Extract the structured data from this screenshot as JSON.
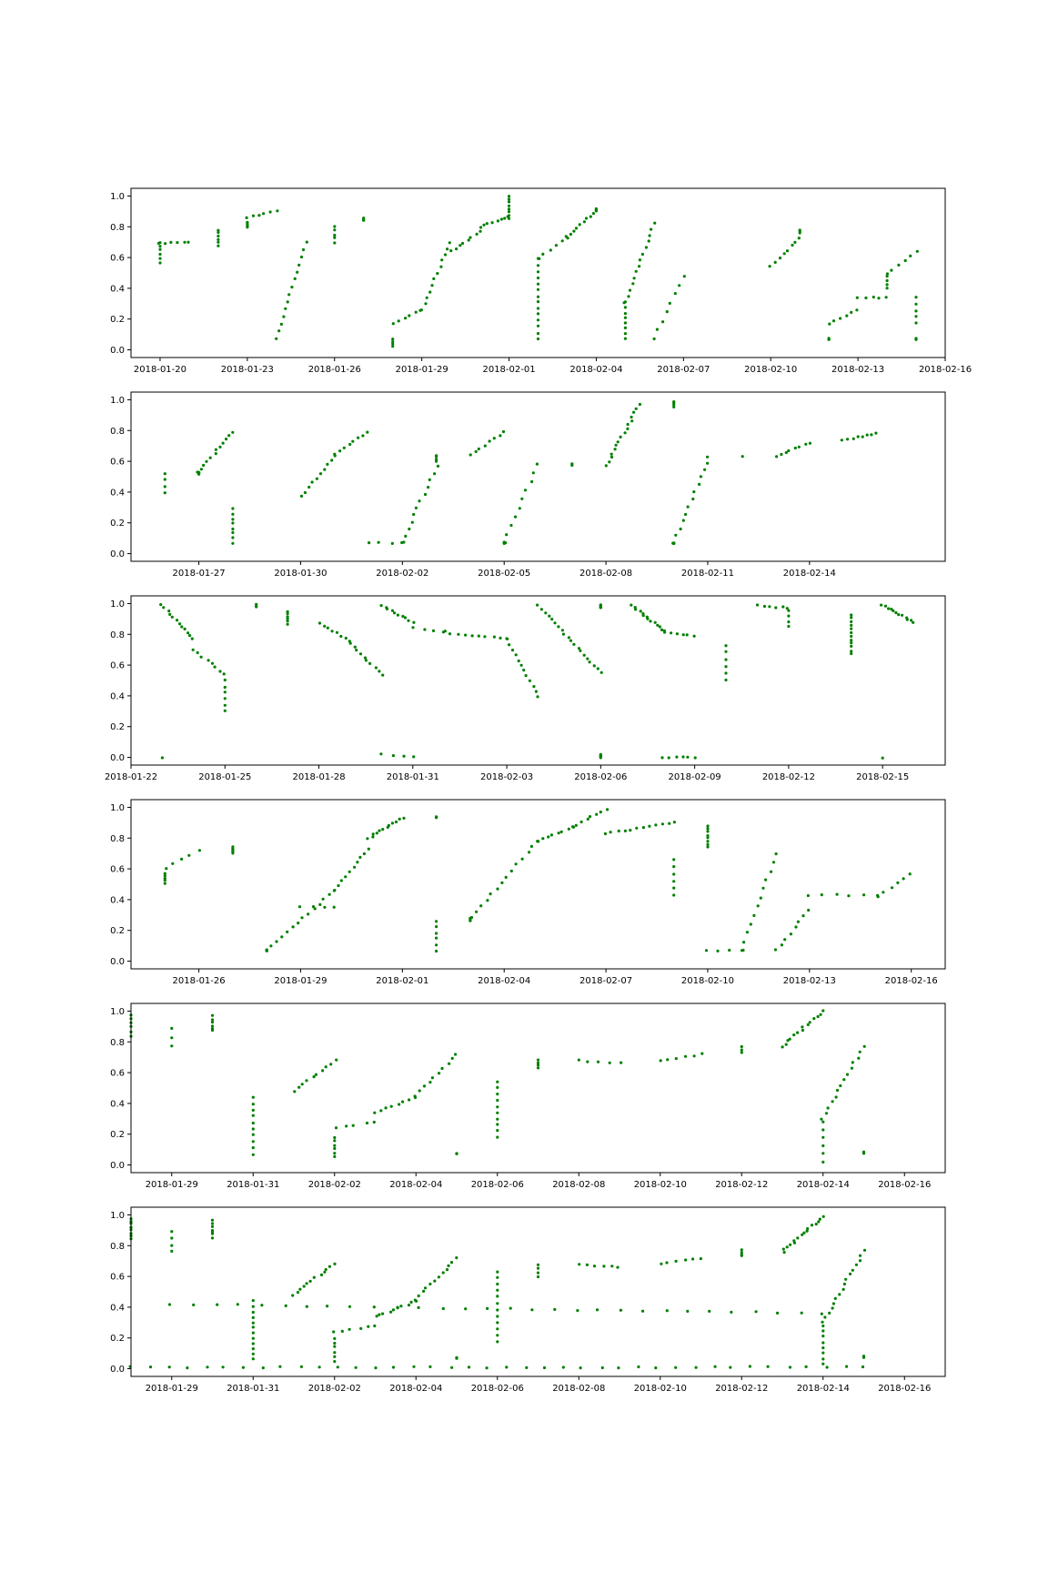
{
  "figure": {
    "background": "#ffffff",
    "point_color": "#008000",
    "axes_color": "#000000"
  },
  "chart_data": [
    {
      "type": "scatter",
      "title": "",
      "xlabel": "",
      "ylabel": "",
      "x_type": "date",
      "xlim": [
        "2018-01-19",
        "2018-02-16"
      ],
      "ylim": [
        -0.05,
        1.05
      ],
      "x_ticks": [
        "2018-01-20",
        "2018-01-23",
        "2018-01-26",
        "2018-01-29",
        "2018-02-01",
        "2018-02-04",
        "2018-02-07",
        "2018-02-10",
        "2018-02-13",
        "2018-02-16"
      ],
      "y_ticks": [
        "0.0",
        "0.2",
        "0.4",
        "0.6",
        "0.8",
        "1.0"
      ],
      "grid": false,
      "legend": "none",
      "segments": [
        [
          "2018-01-20",
          0.57,
          "2018-01-20",
          0.7,
          6
        ],
        [
          "2018-01-20",
          0.69,
          "2018-01-21",
          0.7,
          6
        ],
        [
          "2018-01-22",
          0.68,
          "2018-01-22",
          0.78,
          6
        ],
        [
          "2018-01-23",
          0.8,
          "2018-01-23",
          0.83,
          5
        ],
        [
          "2018-01-23",
          0.86,
          "2018-01-24",
          0.9,
          6
        ],
        [
          "2018-01-24",
          0.07,
          "2018-01-25",
          0.7,
          14
        ],
        [
          "2018-01-26",
          0.7,
          "2018-01-26",
          0.8,
          5
        ],
        [
          "2018-01-27",
          0.84,
          "2018-01-27",
          0.86,
          3
        ],
        [
          "2018-01-28",
          0.02,
          "2018-01-28",
          0.07,
          4
        ],
        [
          "2018-01-28",
          0.17,
          "2018-01-29",
          0.26,
          6
        ],
        [
          "2018-01-29",
          0.26,
          "2018-01-30",
          0.7,
          12
        ],
        [
          "2018-01-30",
          0.64,
          "2018-01-31",
          0.77,
          8
        ],
        [
          "2018-01-31",
          0.8,
          "2018-02-01",
          0.87,
          8
        ],
        [
          "2018-02-01",
          0.85,
          "2018-02-01",
          1.0,
          8
        ],
        [
          "2018-02-02",
          0.07,
          "2018-02-02",
          0.59,
          14
        ],
        [
          "2018-02-02",
          0.59,
          "2018-02-03",
          0.74,
          6
        ],
        [
          "2018-02-03",
          0.73,
          "2018-02-04",
          0.91,
          10
        ],
        [
          "2018-02-04",
          0.9,
          "2018-02-04",
          0.92,
          4
        ],
        [
          "2018-02-05",
          0.07,
          "2018-02-05",
          0.31,
          8
        ],
        [
          "2018-02-05",
          0.31,
          "2018-02-06",
          0.82,
          14
        ],
        [
          "2018-02-06",
          0.07,
          "2018-02-07",
          0.48,
          8
        ],
        [
          "2018-02-10",
          0.54,
          "2018-02-11",
          0.73,
          8
        ],
        [
          "2018-02-11",
          0.76,
          "2018-02-11",
          0.78,
          3
        ],
        [
          "2018-02-12",
          0.07,
          "2018-02-12",
          0.07,
          4
        ],
        [
          "2018-02-12",
          0.17,
          "2018-02-13",
          0.26,
          6
        ],
        [
          "2018-02-13",
          0.34,
          "2018-02-14",
          0.34,
          5
        ],
        [
          "2018-02-14",
          0.4,
          "2018-02-14",
          0.48,
          4
        ],
        [
          "2018-02-14",
          0.49,
          "2018-02-15",
          0.64,
          6
        ],
        [
          "2018-02-15",
          0.07,
          "2018-02-15",
          0.07,
          3
        ],
        [
          "2018-02-15",
          0.17,
          "2018-02-15",
          0.34,
          5
        ]
      ]
    },
    {
      "type": "scatter",
      "title": "",
      "xlabel": "",
      "ylabel": "",
      "x_type": "date",
      "xlim": [
        "2018-01-25",
        "2018-02-18"
      ],
      "ylim": [
        -0.05,
        1.05
      ],
      "x_ticks": [
        "2018-01-27",
        "2018-01-30",
        "2018-02-02",
        "2018-02-05",
        "2018-02-08",
        "2018-02-11",
        "2018-02-14"
      ],
      "y_ticks": [
        "0.0",
        "0.2",
        "0.4",
        "0.6",
        "0.8",
        "1.0"
      ],
      "grid": false,
      "legend": "none",
      "segments": [
        [
          "2018-01-26",
          0.4,
          "2018-01-26",
          0.52,
          4
        ],
        [
          "2018-01-27",
          0.52,
          "2018-01-27",
          0.53,
          5
        ],
        [
          "2018-01-27",
          0.53,
          "2018-01-28",
          0.79,
          12
        ],
        [
          "2018-01-28",
          0.07,
          "2018-01-28",
          0.29,
          8
        ],
        [
          "2018-01-30",
          0.37,
          "2018-01-31",
          0.64,
          10
        ],
        [
          "2018-01-31",
          0.65,
          "2018-02-01",
          0.79,
          8
        ],
        [
          "2018-02-01",
          0.07,
          "2018-02-02",
          0.07,
          4
        ],
        [
          "2018-02-02",
          0.07,
          "2018-02-03",
          0.57,
          12
        ],
        [
          "2018-02-03",
          0.6,
          "2018-02-03",
          0.64,
          4
        ],
        [
          "2018-02-04",
          0.64,
          "2018-02-05",
          0.79,
          8
        ],
        [
          "2018-02-05",
          0.07,
          "2018-02-05",
          0.07,
          4
        ],
        [
          "2018-02-05",
          0.07,
          "2018-02-06",
          0.58,
          10
        ],
        [
          "2018-02-07",
          0.57,
          "2018-02-07",
          0.58,
          2
        ],
        [
          "2018-02-08",
          0.57,
          "2018-02-09",
          0.97,
          16
        ],
        [
          "2018-02-10",
          0.95,
          "2018-02-10",
          0.99,
          4
        ],
        [
          "2018-02-10",
          0.07,
          "2018-02-10",
          0.07,
          4
        ],
        [
          "2018-02-10",
          0.07,
          "2018-02-11",
          0.59,
          12
        ],
        [
          "2018-02-11",
          0.63,
          "2018-02-12",
          0.63,
          2
        ],
        [
          "2018-02-13",
          0.63,
          "2018-02-14",
          0.72,
          8
        ],
        [
          "2018-02-15",
          0.74,
          "2018-02-16",
          0.78,
          8
        ]
      ]
    },
    {
      "type": "scatter",
      "title": "",
      "xlabel": "",
      "ylabel": "",
      "x_type": "date",
      "xlim": [
        "2018-01-22",
        "2018-02-17"
      ],
      "ylim": [
        -0.05,
        1.05
      ],
      "x_ticks": [
        "2018-01-22",
        "2018-01-25",
        "2018-01-28",
        "2018-01-31",
        "2018-02-03",
        "2018-02-06",
        "2018-02-09",
        "2018-02-12",
        "2018-02-15"
      ],
      "y_ticks": [
        "0.0",
        "0.2",
        "0.4",
        "0.6",
        "0.8",
        "1.0"
      ],
      "grid": false,
      "legend": "none",
      "segments": [
        [
          "2018-01-23",
          0.99,
          "2018-01-24",
          0.77,
          12
        ],
        [
          "2018-01-24",
          0.7,
          "2018-01-25",
          0.54,
          8
        ],
        [
          "2018-01-25",
          0.5,
          "2018-01-25",
          0.3,
          6
        ],
        [
          "2018-01-26",
          0.99,
          "2018-01-26",
          0.98,
          3
        ],
        [
          "2018-01-27",
          0.95,
          "2018-01-27",
          0.87,
          6
        ],
        [
          "2018-01-28",
          0.87,
          "2018-01-29",
          0.76,
          8
        ],
        [
          "2018-01-29",
          0.74,
          "2018-01-30",
          0.54,
          10
        ],
        [
          "2018-01-30",
          0.99,
          "2018-01-31",
          0.88,
          10
        ],
        [
          "2018-01-31",
          0.84,
          "2018-02-01",
          0.82,
          4
        ],
        [
          "2018-02-01",
          0.81,
          "2018-02-03",
          0.77,
          10
        ],
        [
          "2018-02-03",
          0.77,
          "2018-02-04",
          0.39,
          12
        ],
        [
          "2018-02-04",
          0.99,
          "2018-02-06",
          0.55,
          20
        ],
        [
          "2018-02-06",
          0.97,
          "2018-02-06",
          0.99,
          6
        ],
        [
          "2018-02-07",
          0.99,
          "2018-02-08",
          0.82,
          14
        ],
        [
          "2018-02-08",
          0.81,
          "2018-02-09",
          0.79,
          6
        ],
        [
          "2018-02-10",
          0.73,
          "2018-02-10",
          0.5,
          6
        ],
        [
          "2018-02-11",
          0.99,
          "2018-02-12",
          0.97,
          6
        ],
        [
          "2018-02-12",
          0.95,
          "2018-02-12",
          0.85,
          4
        ],
        [
          "2018-02-14",
          0.93,
          "2018-02-14",
          0.67,
          12
        ],
        [
          "2018-02-15",
          0.99,
          "2018-02-16",
          0.88,
          12
        ],
        [
          "2018-01-23",
          0.0,
          "2018-01-23",
          0.0,
          1
        ],
        [
          "2018-01-30",
          0.02,
          "2018-01-31",
          0.0,
          4
        ],
        [
          "2018-02-06",
          0.0,
          "2018-02-06",
          0.02,
          5
        ],
        [
          "2018-02-08",
          0.0,
          "2018-02-09",
          0.0,
          6
        ],
        [
          "2018-02-15",
          0.0,
          "2018-02-15",
          0.0,
          1
        ]
      ]
    },
    {
      "type": "scatter",
      "title": "",
      "xlabel": "",
      "ylabel": "",
      "x_type": "date",
      "xlim": [
        "2018-01-24",
        "2018-02-17"
      ],
      "ylim": [
        -0.05,
        1.05
      ],
      "x_ticks": [
        "2018-01-26",
        "2018-01-29",
        "2018-02-01",
        "2018-02-04",
        "2018-02-07",
        "2018-02-10",
        "2018-02-13",
        "2018-02-16"
      ],
      "y_ticks": [
        "0.0",
        "0.2",
        "0.4",
        "0.6",
        "0.8",
        "1.0"
      ],
      "grid": false,
      "legend": "none",
      "segments": [
        [
          "2018-01-25",
          0.51,
          "2018-01-25",
          0.57,
          5
        ],
        [
          "2018-01-25",
          0.6,
          "2018-01-26",
          0.72,
          5
        ],
        [
          "2018-01-27",
          0.74,
          "2018-01-27",
          0.7,
          6
        ],
        [
          "2018-01-28",
          0.07,
          "2018-01-28",
          0.07,
          4
        ],
        [
          "2018-01-28",
          0.07,
          "2018-01-30",
          0.46,
          14
        ],
        [
          "2018-01-29",
          0.35,
          "2018-01-30",
          0.35,
          4
        ],
        [
          "2018-01-30",
          0.46,
          "2018-01-31",
          0.73,
          10
        ],
        [
          "2018-01-31",
          0.8,
          "2018-02-01",
          0.93,
          12
        ],
        [
          "2018-02-02",
          0.93,
          "2018-02-02",
          0.94,
          3
        ],
        [
          "2018-02-02",
          0.07,
          "2018-02-02",
          0.26,
          6
        ],
        [
          "2018-02-03",
          0.26,
          "2018-02-03",
          0.28,
          4
        ],
        [
          "2018-02-03",
          0.28,
          "2018-02-05",
          0.78,
          14
        ],
        [
          "2018-02-05",
          0.78,
          "2018-02-06",
          0.87,
          8
        ],
        [
          "2018-02-06",
          0.87,
          "2018-02-07",
          0.99,
          8
        ],
        [
          "2018-02-07",
          0.83,
          "2018-02-09",
          0.9,
          12
        ],
        [
          "2018-02-09",
          0.43,
          "2018-02-09",
          0.66,
          6
        ],
        [
          "2018-02-10",
          0.74,
          "2018-02-10",
          0.88,
          8
        ],
        [
          "2018-02-10",
          0.07,
          "2018-02-11",
          0.07,
          4
        ],
        [
          "2018-02-11",
          0.07,
          "2018-02-12",
          0.7,
          12
        ],
        [
          "2018-02-12",
          0.07,
          "2018-02-13",
          0.33,
          8
        ],
        [
          "2018-02-13",
          0.43,
          "2018-02-15",
          0.43,
          6
        ],
        [
          "2018-02-15",
          0.42,
          "2018-02-16",
          0.57,
          6
        ]
      ]
    },
    {
      "type": "scatter",
      "title": "",
      "xlabel": "",
      "ylabel": "",
      "x_type": "date",
      "xlim": [
        "2018-01-28",
        "2018-02-17"
      ],
      "ylim": [
        -0.05,
        1.05
      ],
      "x_ticks": [
        "2018-01-29",
        "2018-01-31",
        "2018-02-02",
        "2018-02-04",
        "2018-02-06",
        "2018-02-08",
        "2018-02-10",
        "2018-02-12",
        "2018-02-14",
        "2018-02-16"
      ],
      "y_ticks": [
        "0.0",
        "0.2",
        "0.4",
        "0.6",
        "0.8",
        "1.0"
      ],
      "grid": false,
      "legend": "none",
      "segments": [
        [
          "2018-01-28",
          0.98,
          "2018-01-28",
          0.84,
          6
        ],
        [
          "2018-01-29",
          0.89,
          "2018-01-29",
          0.77,
          3
        ],
        [
          "2018-01-30",
          0.89,
          "2018-01-30",
          0.89,
          1
        ],
        [
          "2018-01-30",
          0.88,
          "2018-01-30",
          0.97,
          5
        ],
        [
          "2018-01-31",
          0.07,
          "2018-01-31",
          0.44,
          10
        ],
        [
          "2018-02-01",
          0.48,
          "2018-02-02",
          0.68,
          10
        ],
        [
          "2018-02-02",
          0.05,
          "2018-02-02",
          0.18,
          6
        ],
        [
          "2018-02-02",
          0.24,
          "2018-02-03",
          0.28,
          5
        ],
        [
          "2018-02-03",
          0.34,
          "2018-02-04",
          0.44,
          8
        ],
        [
          "2018-02-04",
          0.45,
          "2018-02-05",
          0.72,
          10
        ],
        [
          "2018-02-05",
          0.07,
          "2018-02-05",
          0.07,
          3
        ],
        [
          "2018-02-06",
          0.18,
          "2018-02-06",
          0.54,
          10
        ],
        [
          "2018-02-07",
          0.63,
          "2018-02-07",
          0.68,
          4
        ],
        [
          "2018-02-08",
          0.68,
          "2018-02-09",
          0.66,
          5
        ],
        [
          "2018-02-10",
          0.68,
          "2018-02-11",
          0.72,
          6
        ],
        [
          "2018-02-12",
          0.73,
          "2018-02-12",
          0.77,
          3
        ],
        [
          "2018-02-13",
          0.77,
          "2018-02-14",
          1.0,
          14
        ],
        [
          "2018-02-14",
          0.02,
          "2018-02-14",
          0.28,
          6
        ],
        [
          "2018-02-14",
          0.3,
          "2018-02-15",
          0.77,
          14
        ],
        [
          "2018-02-15",
          0.08,
          "2018-02-15",
          0.08,
          3
        ]
      ]
    },
    {
      "type": "scatter",
      "title": "",
      "xlabel": "",
      "ylabel": "",
      "x_type": "date",
      "xlim": [
        "2018-01-28",
        "2018-02-17"
      ],
      "ylim": [
        -0.05,
        1.05
      ],
      "x_ticks": [
        "2018-01-29",
        "2018-01-31",
        "2018-02-02",
        "2018-02-04",
        "2018-02-06",
        "2018-02-08",
        "2018-02-10",
        "2018-02-12",
        "2018-02-14",
        "2018-02-16"
      ],
      "y_ticks": [
        "0.0",
        "0.2",
        "0.4",
        "0.6",
        "0.8",
        "1.0"
      ],
      "grid": false,
      "legend": "none",
      "segments": [
        [
          "2018-01-28",
          0.98,
          "2018-01-28",
          0.84,
          8
        ],
        [
          "2018-01-29",
          0.89,
          "2018-01-29",
          0.76,
          4
        ],
        [
          "2018-01-30",
          0.89,
          "2018-01-30",
          0.89,
          1
        ],
        [
          "2018-01-30",
          0.85,
          "2018-01-30",
          0.97,
          6
        ],
        [
          "2018-01-31",
          0.06,
          "2018-01-31",
          0.44,
          12
        ],
        [
          "2018-02-01",
          0.48,
          "2018-02-02",
          0.68,
          12
        ],
        [
          "2018-02-02",
          0.05,
          "2018-02-02",
          0.2,
          6
        ],
        [
          "2018-02-02",
          0.24,
          "2018-02-03",
          0.28,
          6
        ],
        [
          "2018-02-03",
          0.34,
          "2018-02-04",
          0.44,
          10
        ],
        [
          "2018-02-04",
          0.45,
          "2018-02-05",
          0.72,
          12
        ],
        [
          "2018-02-05",
          0.07,
          "2018-02-05",
          0.07,
          4
        ],
        [
          "2018-02-06",
          0.18,
          "2018-02-06",
          0.63,
          12
        ],
        [
          "2018-02-07",
          0.6,
          "2018-02-07",
          0.68,
          4
        ],
        [
          "2018-02-08",
          0.68,
          "2018-02-09",
          0.66,
          6
        ],
        [
          "2018-02-10",
          0.68,
          "2018-02-11",
          0.72,
          6
        ],
        [
          "2018-02-12",
          0.73,
          "2018-02-12",
          0.77,
          4
        ],
        [
          "2018-02-13",
          0.76,
          "2018-02-14",
          0.99,
          16
        ],
        [
          "2018-02-14",
          0.03,
          "2018-02-14",
          0.28,
          8
        ],
        [
          "2018-02-14",
          0.3,
          "2018-02-15",
          0.77,
          16
        ],
        [
          "2018-02-15",
          0.07,
          "2018-02-15",
          0.08,
          3
        ],
        [
          "2018-01-28",
          0.01,
          "2018-02-15",
          0.01,
          40
        ],
        [
          "2018-01-29",
          0.42,
          "2018-02-14",
          0.36,
          30
        ]
      ]
    }
  ]
}
